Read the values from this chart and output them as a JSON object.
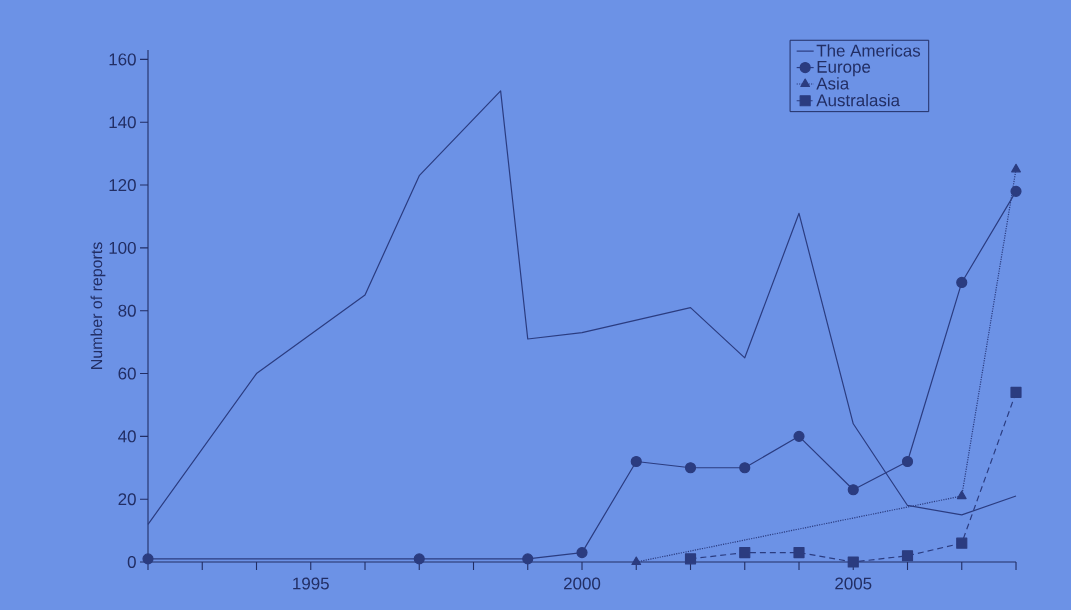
{
  "chart_data": {
    "type": "line",
    "ylabel": "Number of reports",
    "xlim": [
      1992,
      2008
    ],
    "ylim": [
      0,
      163
    ],
    "xticks": [
      {
        "value": 1992,
        "label": null
      },
      {
        "value": 1993,
        "label": null
      },
      {
        "value": 1994,
        "label": null
      },
      1995,
      {
        "value": 1996,
        "label": null
      },
      {
        "value": 1997,
        "label": null
      },
      {
        "value": 1998,
        "label": null
      },
      {
        "value": 1999,
        "label": null
      },
      2000,
      {
        "value": 2001,
        "label": null
      },
      {
        "value": 2002,
        "label": null
      },
      {
        "value": 2003,
        "label": null
      },
      {
        "value": 2004,
        "label": null
      },
      2005,
      {
        "value": 2006,
        "label": null
      },
      {
        "value": 2007,
        "label": null
      },
      {
        "value": 2008,
        "label": null
      }
    ],
    "yticks": [
      0,
      20,
      40,
      60,
      80,
      100,
      120,
      140,
      160
    ],
    "grid": false,
    "legend": "top right",
    "series": [
      {
        "name": "The Americas",
        "color": "#2b3c80",
        "marker": "none",
        "line_style": "solid",
        "x": [
          1992,
          1994,
          1996,
          1997,
          1998.5,
          1999,
          2000,
          2002,
          2003,
          2004,
          2005,
          2006,
          2007,
          2008
        ],
        "values": [
          12,
          60,
          85,
          123,
          150,
          71,
          73,
          81,
          65,
          111,
          44,
          18,
          15,
          21
        ]
      },
      {
        "name": "Europe",
        "color": "#2b3c80",
        "marker": "circle",
        "line_style": "solid",
        "x": [
          1992,
          1997,
          1999,
          2000,
          2001,
          2002,
          2003,
          2004,
          2005,
          2006,
          2007,
          2008
        ],
        "values": [
          1,
          1,
          1,
          3,
          32,
          30,
          30,
          40,
          23,
          32,
          89,
          118
        ]
      },
      {
        "name": "Asia",
        "color": "#2b3c80",
        "marker": "triangle",
        "line_style": "dotted",
        "x": [
          2001,
          2007,
          2008
        ],
        "values": [
          0,
          21,
          125
        ]
      },
      {
        "name": "Australasia",
        "color": "#2b3c80",
        "marker": "square",
        "line_style": "dashed",
        "x": [
          2002,
          2003,
          2004,
          2005,
          2006,
          2007,
          2008
        ],
        "values": [
          1,
          3,
          3,
          0,
          2,
          6,
          54
        ]
      }
    ]
  }
}
